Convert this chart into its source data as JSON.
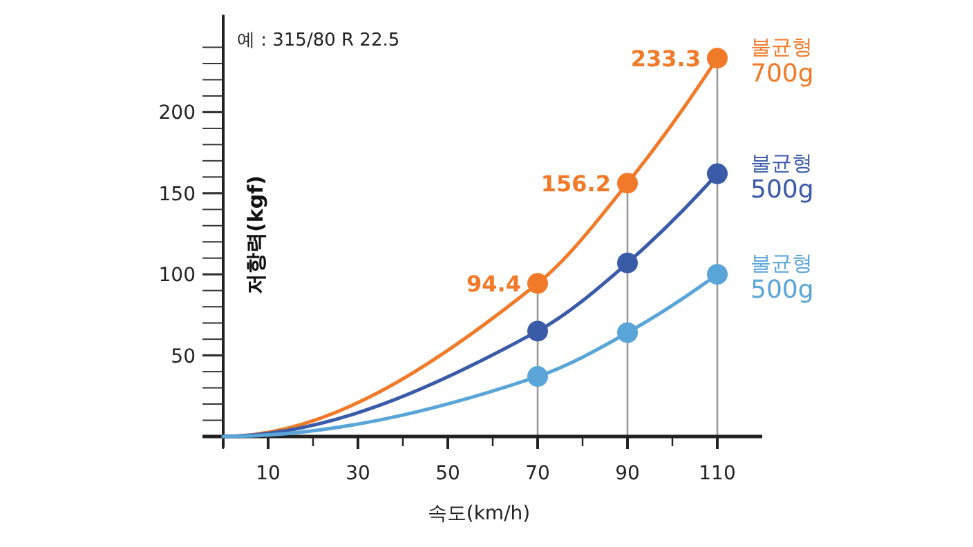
{
  "chart_data": {
    "type": "line",
    "xlabel": "속도(km/h)",
    "ylabel": "저항력(kgf)",
    "annotations": [
      "예 : 315/80 R 22.5"
    ],
    "xlim": [
      0,
      120
    ],
    "ylim": [
      0,
      260
    ],
    "xticks": [
      {
        "value": 0,
        "label": null
      },
      10,
      {
        "value": 20,
        "label": null
      },
      30,
      {
        "value": 40,
        "label": null
      },
      50,
      {
        "value": 60,
        "label": null
      },
      70,
      {
        "value": 80,
        "label": null
      },
      90,
      {
        "value": 100,
        "label": null
      },
      110
    ],
    "yticks": [
      {
        "value": 10,
        "label": null
      },
      {
        "value": 20,
        "label": null
      },
      {
        "value": 30,
        "label": null
      },
      {
        "value": 40,
        "label": null
      },
      50,
      {
        "value": 60,
        "label": null
      },
      {
        "value": 70,
        "label": null
      },
      {
        "value": 80,
        "label": null
      },
      {
        "value": 90,
        "label": null
      },
      100,
      {
        "value": 110,
        "label": null
      },
      {
        "value": 120,
        "label": null
      },
      {
        "value": 130,
        "label": null
      },
      {
        "value": 140,
        "label": null
      },
      150,
      {
        "value": 160,
        "label": null
      },
      {
        "value": 170,
        "label": null
      },
      {
        "value": 180,
        "label": null
      },
      {
        "value": 190,
        "label": null
      },
      200,
      {
        "value": 210,
        "label": null
      },
      {
        "value": 220,
        "label": null
      },
      {
        "value": 230,
        "label": null
      },
      {
        "value": 240,
        "label": null
      }
    ],
    "marker": "circle",
    "grid": false,
    "ref_lines": [
      {
        "axis": "x",
        "value": 70,
        "color": "#999999"
      },
      {
        "axis": "x",
        "value": 90,
        "color": "#999999"
      },
      {
        "axis": "x",
        "value": 110,
        "color": "#999999"
      }
    ],
    "series": [
      {
        "name": "불균형 700g",
        "color": "#f07a28",
        "x": [
          0,
          70,
          90,
          110
        ],
        "values": [
          0,
          94.4,
          156.2,
          233.3
        ],
        "value_labels": [
          null,
          "94.4",
          "156.2",
          "233.3"
        ]
      },
      {
        "name": "불균형 500g",
        "color": "#3a5ba8",
        "x": [
          0,
          70,
          90,
          110
        ],
        "values": [
          0,
          65,
          107,
          162
        ]
      },
      {
        "name": "불균형 500g",
        "color": "#5aa5d8",
        "x": [
          0,
          70,
          90,
          110
        ],
        "values": [
          0,
          37,
          64,
          100
        ]
      }
    ]
  }
}
